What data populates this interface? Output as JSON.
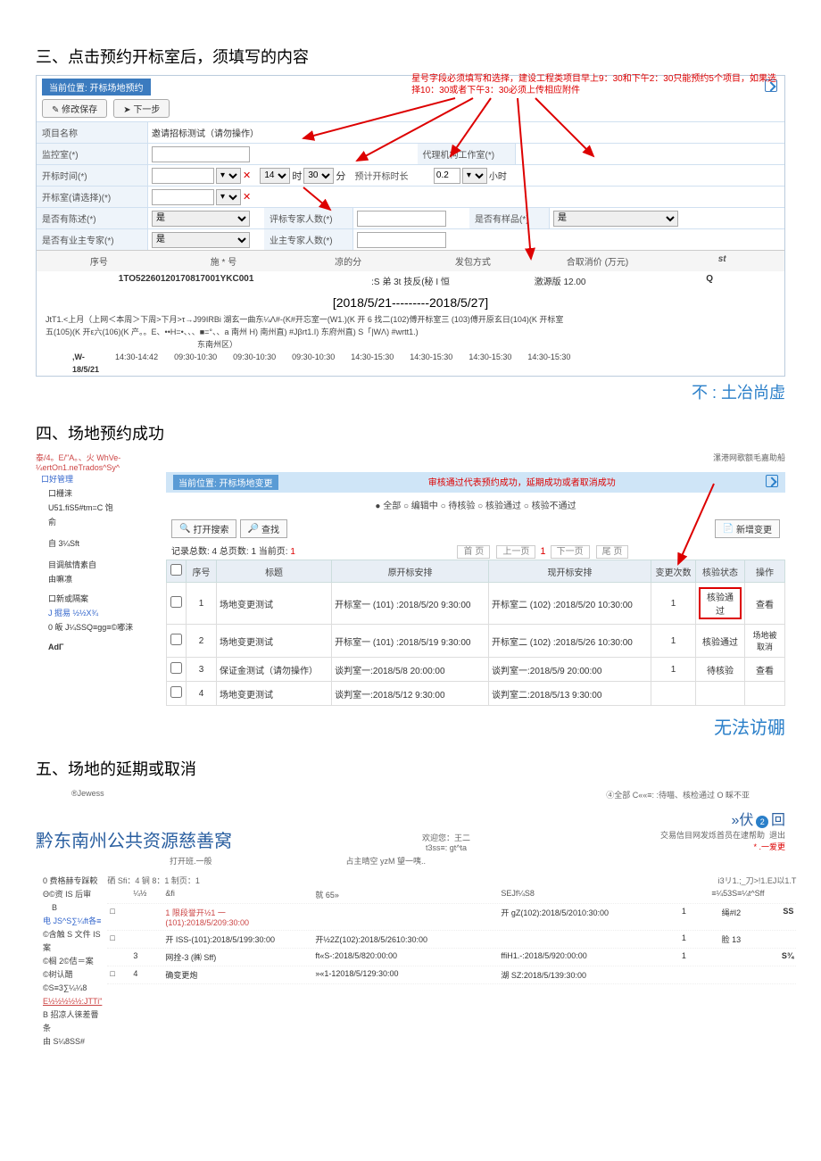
{
  "s3": {
    "heading": "三、点击预约开标室后，须填写的内容",
    "tab": "当前位置: 开标场地预约",
    "btn_save": "修改保存",
    "btn_next": "下一步",
    "banner1": "星号字段必须填写和选择，建设工程类项目早上9：30和下午2：30只能预约5个项目，如果选",
    "banner2": "择10：30或者下午3：30必须上传相应附件",
    "rows": [
      [
        "项目名称",
        "邀请招标测试（请勿操作）"
      ],
      [
        "监控室(*)",
        ""
      ],
      [
        "开标时间(*)",
        ""
      ],
      [
        "开标室(请选择)(*)",
        ""
      ],
      [
        "是否有陈述(*)",
        "是"
      ],
      [
        "是否有业主专家(*)",
        "是"
      ]
    ],
    "mid": {
      "agency": "代理机构工作室(*)",
      "time_h": "14",
      "time_m": "30",
      "dur_lbl": "预计开标时长",
      "dur_v": "0.2",
      "dur_u": "小时",
      "judge": "评标专家人数(*)",
      "sample": "是否有样品(*)",
      "sample_v": "是",
      "owner": "业主专家人数(*)"
    },
    "grid": {
      "h": [
        "序号",
        "施 * 号",
        "凉的分",
        "发包方式",
        "合取消价 (万元)",
        "st"
      ],
      "row": [
        "1TO52260120170817001YKC001",
        ":S 弟 3t 技反(秘 I 恒",
        "激源版 12.00",
        "Q"
      ]
    },
    "date": "[2018/5/21---------2018/5/27]",
    "sched1": "JtT1.<上月（上网＜本周＞下周>下月>τ→J99IRBi 湖玄一曲东¼Λ#-(K#开忘室一(W1.)(K 开 6 找二(102)傅开标室三 (103)傅开原玄日(104)(K 开标室",
    "sched2": "五(105)(K 开ε六(106)(K 产。。E、••H=•、、、■=°、、a 南州 H) 南州直)           #Jβrt1.I)           东府州直)                S「|WΛ)                #wrtt1.)",
    "sched3": "东南州区）",
    "times": [
      "14:30-14:42",
      "09:30-10:30",
      "09:30-10:30",
      "09:30-10:30",
      "14:30-15:30",
      "14:30-15:30",
      "14:30-15:30",
      "14:30-15:30"
    ],
    "wdate": ",W-\n18/5/21",
    "blue": "不 : 土冶尚虚"
  },
  "s4": {
    "heading": "四、场地预约成功",
    "sideTop": "泰/4。E/\"A。、火 WhVe-\n¼ertOn1.neTrados^Sy^",
    "ship": "漯港网歌额毛嘉助船",
    "side": [
      "口好管理",
      "口栅涞",
      "U51.fiS5#tm=C 饱",
      "俞",
      "自 3¼Sft",
      "目调舷情素自",
      "由嘛凛",
      "口新或隔案",
      "J 掘易 ½½X¾",
      "0 皈 J¼SSQ≡gg≡©嘟涞",
      "AdΓ"
    ],
    "crumb": "当前位置: 开标场地变更",
    "crumbR": "审核通过代表预约成功，延期成功或者取消成功",
    "radios": "● 全部 ○ 编辑中 ○ 待核验 ○ 核验通过 ○ 核验不通过",
    "search": "打开搜索",
    "find": "查找",
    "add": "新增变更",
    "counts": "记录总数: 4 总页数: 1 当前页: 1",
    "pager": [
      "首 页",
      "上一页",
      "下一页",
      "尾 页"
    ],
    "th": [
      "",
      "序号",
      "标题",
      "原开标安排",
      "现开标安排",
      "变更次数",
      "核验状态",
      "操作"
    ],
    "rows": [
      [
        "1",
        "场地变更测试",
        "开标室一 (101) :2018/5/20 9:30:00",
        "开标室二 (102) :2018/5/20 10:30:00",
        "1",
        "核验通过",
        "查看"
      ],
      [
        "2",
        "场地变更测试",
        "开标室一 (101) :2018/5/19 9:30:00",
        "开标室二 (102) :2018/5/26 10:30:00",
        "1",
        "核验通过",
        "场地被\n取消"
      ],
      [
        "3",
        "保证金测试（请勿操作）",
        "谈判室一:2018/5/8 20:00:00",
        "谈判室一:2018/5/9 20:00:00",
        "1",
        "待核验",
        "查看"
      ],
      [
        "4",
        "场地变更测试",
        "谈判室一:2018/5/12 9:30:00",
        "谈判室二:2018/5/13 9:30:00",
        "",
        "",
        ""
      ]
    ],
    "blue": "无法访硼"
  },
  "s5": {
    "heading": "五、场地的延期或取消",
    "jl": "®Jewess",
    "jr": "④全部 C««≡:  :待喵、核检通过 O 睬不亚",
    "title": "黔东南州公共资源慈善窝",
    "welcome1": "欢迎您：王二",
    "welcome2": "t3ss≡: gt^ta",
    "nav": "交易信目网发烁首员在逮帮助",
    "exit": "退出",
    "fuk": "»伏",
    "huik": "回",
    "num": "❷",
    "star": "* .一爱更",
    "side": [
      "0 费格赫专踩較",
      "Θ©资 IS 后审",
      "B",
      "电 JS^S∑¼ft各≡",
      "©含触 S 文件 IS 案",
      "©榈 2©佶＝案",
      "©树认醋",
      "©S≡3∑¼¼8",
      "E½½½½½:JTTi\"",
      "B 招凉人徕差罾条",
      "由 S¼8SS#"
    ],
    "tab": "打开班.一般",
    "ph": "占主晴空 yzM 望一咦..",
    "cnt": "硒 Sfi：4 锏 8：1 制页：1",
    "pgs": "i3リ1.;_刀>!1.EJ以1.T",
    "th": [
      "",
      "¼½",
      "&fi",
      "就 65»",
      "SEJf¼S8",
      "≡¼53S≡¼t^Sff",
      ""
    ],
    "rows": [
      [
        "",
        "1 限段誉开½1 一(101):2018/5/209:30:00",
        "",
        "开 gZ(102):2018/5/2010:30:00",
        "1",
        "绳#I2",
        "SS"
      ],
      [
        "",
        "开 ISS-(101):2018/5/199:30:00",
        "开½2Z(102):2018/5/2610:30:00",
        "",
        "1",
        "脸 13",
        ""
      ],
      [
        "3",
        "网拴-3 (㈱ Sff)",
        "ft«S-:2018/5/820:00:00",
        "",
        "ffiH1.-:2018/5/920:00:00",
        "1",
        "S¾"
      ],
      [
        "4",
        "确变更炮",
        "»«1-12018/5/129:30:00",
        "",
        "湖 SZ:2018/5/139:30:00",
        "",
        ""
      ]
    ]
  }
}
